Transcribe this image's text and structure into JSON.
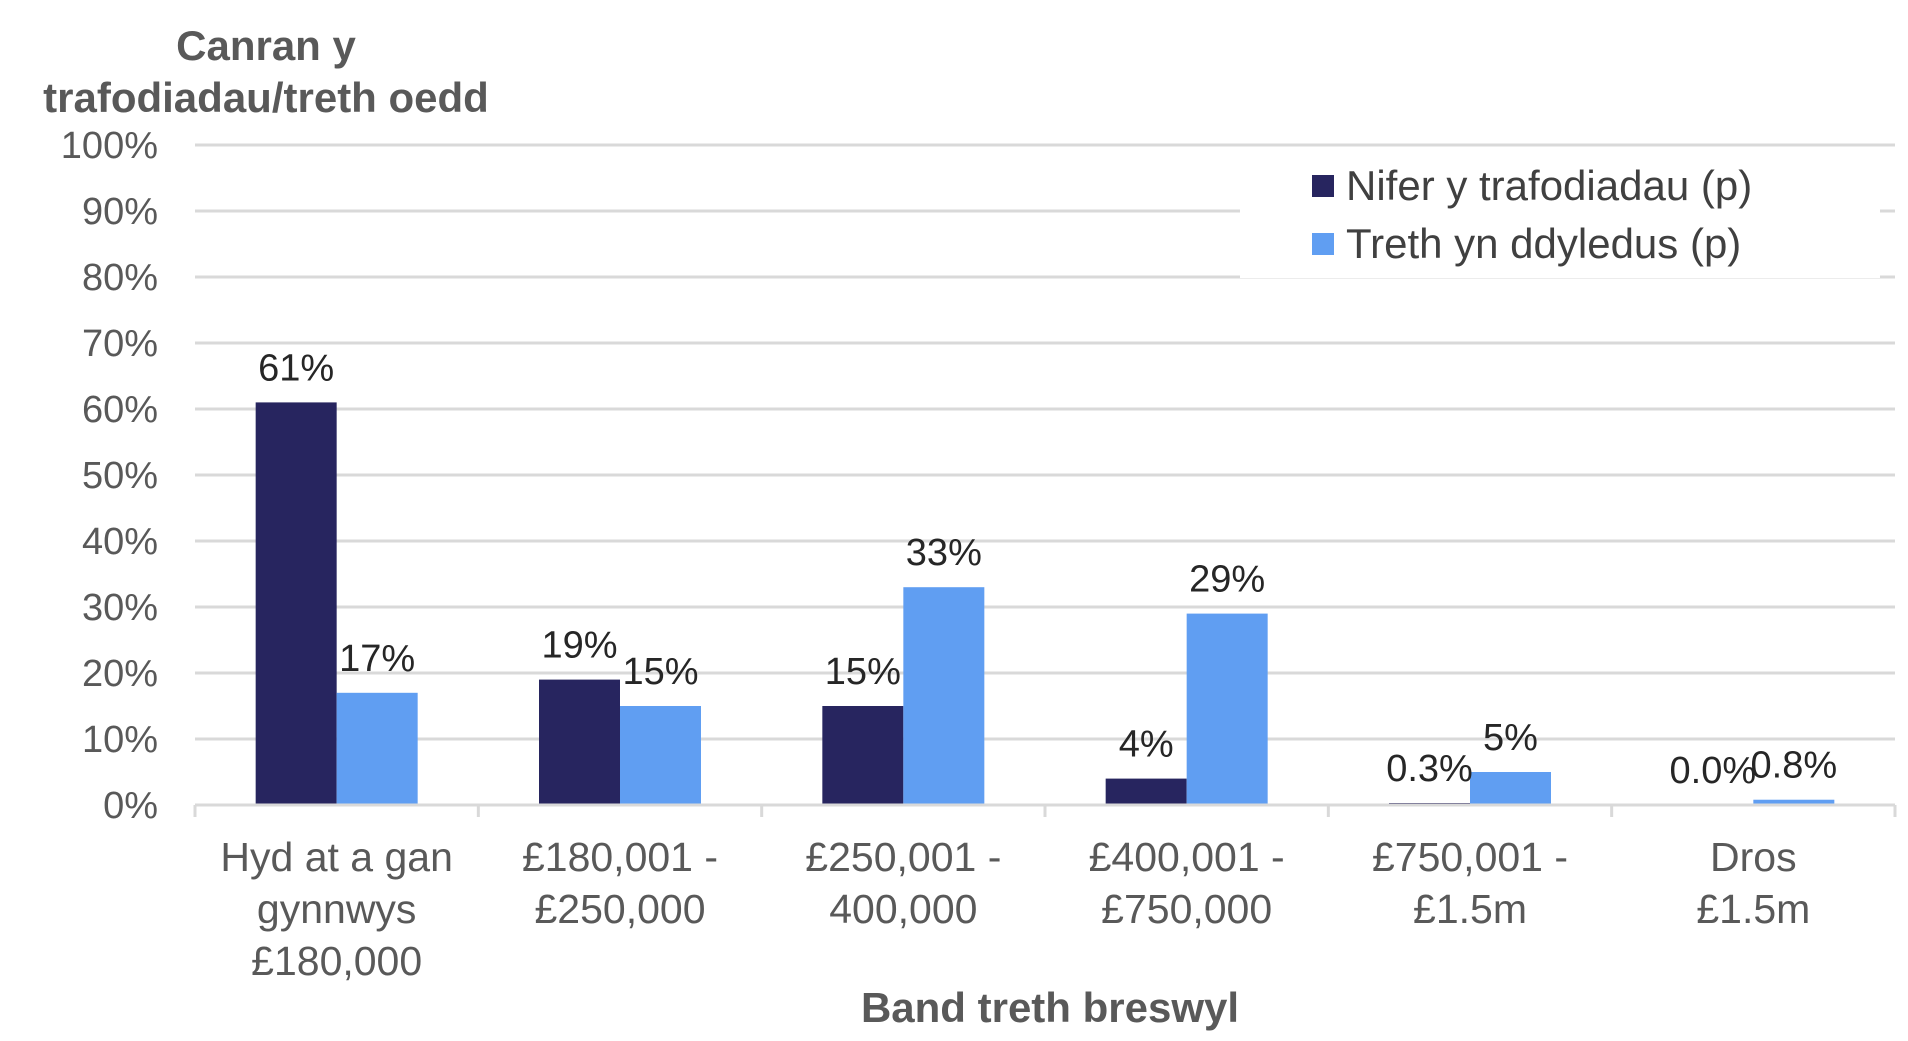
{
  "chart_data": {
    "type": "bar",
    "title": "",
    "ylabel_lines": [
      "Canran y",
      "trafodiadau/treth oedd"
    ],
    "xlabel": "Band treth breswyl",
    "ylim": [
      0,
      100
    ],
    "yticks": [
      0,
      10,
      20,
      30,
      40,
      50,
      60,
      70,
      80,
      90,
      100
    ],
    "ytick_labels": [
      "0%",
      "10%",
      "20%",
      "30%",
      "40%",
      "50%",
      "60%",
      "70%",
      "80%",
      "90%",
      "100%"
    ],
    "grid": true,
    "legend_position": "top-right",
    "categories": [
      [
        "Hyd at a gan",
        "gynnwys",
        "£180,000"
      ],
      [
        "£180,001 -",
        "£250,000"
      ],
      [
        "£250,001 -",
        "400,000"
      ],
      [
        "£400,001 -",
        "£750,000"
      ],
      [
        "£750,001 -",
        "£1.5m"
      ],
      [
        "Dros",
        "£1.5m"
      ]
    ],
    "series": [
      {
        "name": "Nifer y trafodiadau (p)",
        "color": "#27255f",
        "values": [
          61,
          19,
          15,
          4,
          0.3,
          0.0
        ],
        "labels": [
          "61%",
          "19%",
          "15%",
          "4%",
          "0.3%",
          "0.0%"
        ]
      },
      {
        "name": "Treth yn ddyledus (p)",
        "color": "#609ef2",
        "values": [
          17,
          15,
          33,
          29,
          5,
          0.8
        ],
        "labels": [
          "17%",
          "15%",
          "33%",
          "29%",
          "5%",
          "0.8%"
        ]
      }
    ]
  }
}
